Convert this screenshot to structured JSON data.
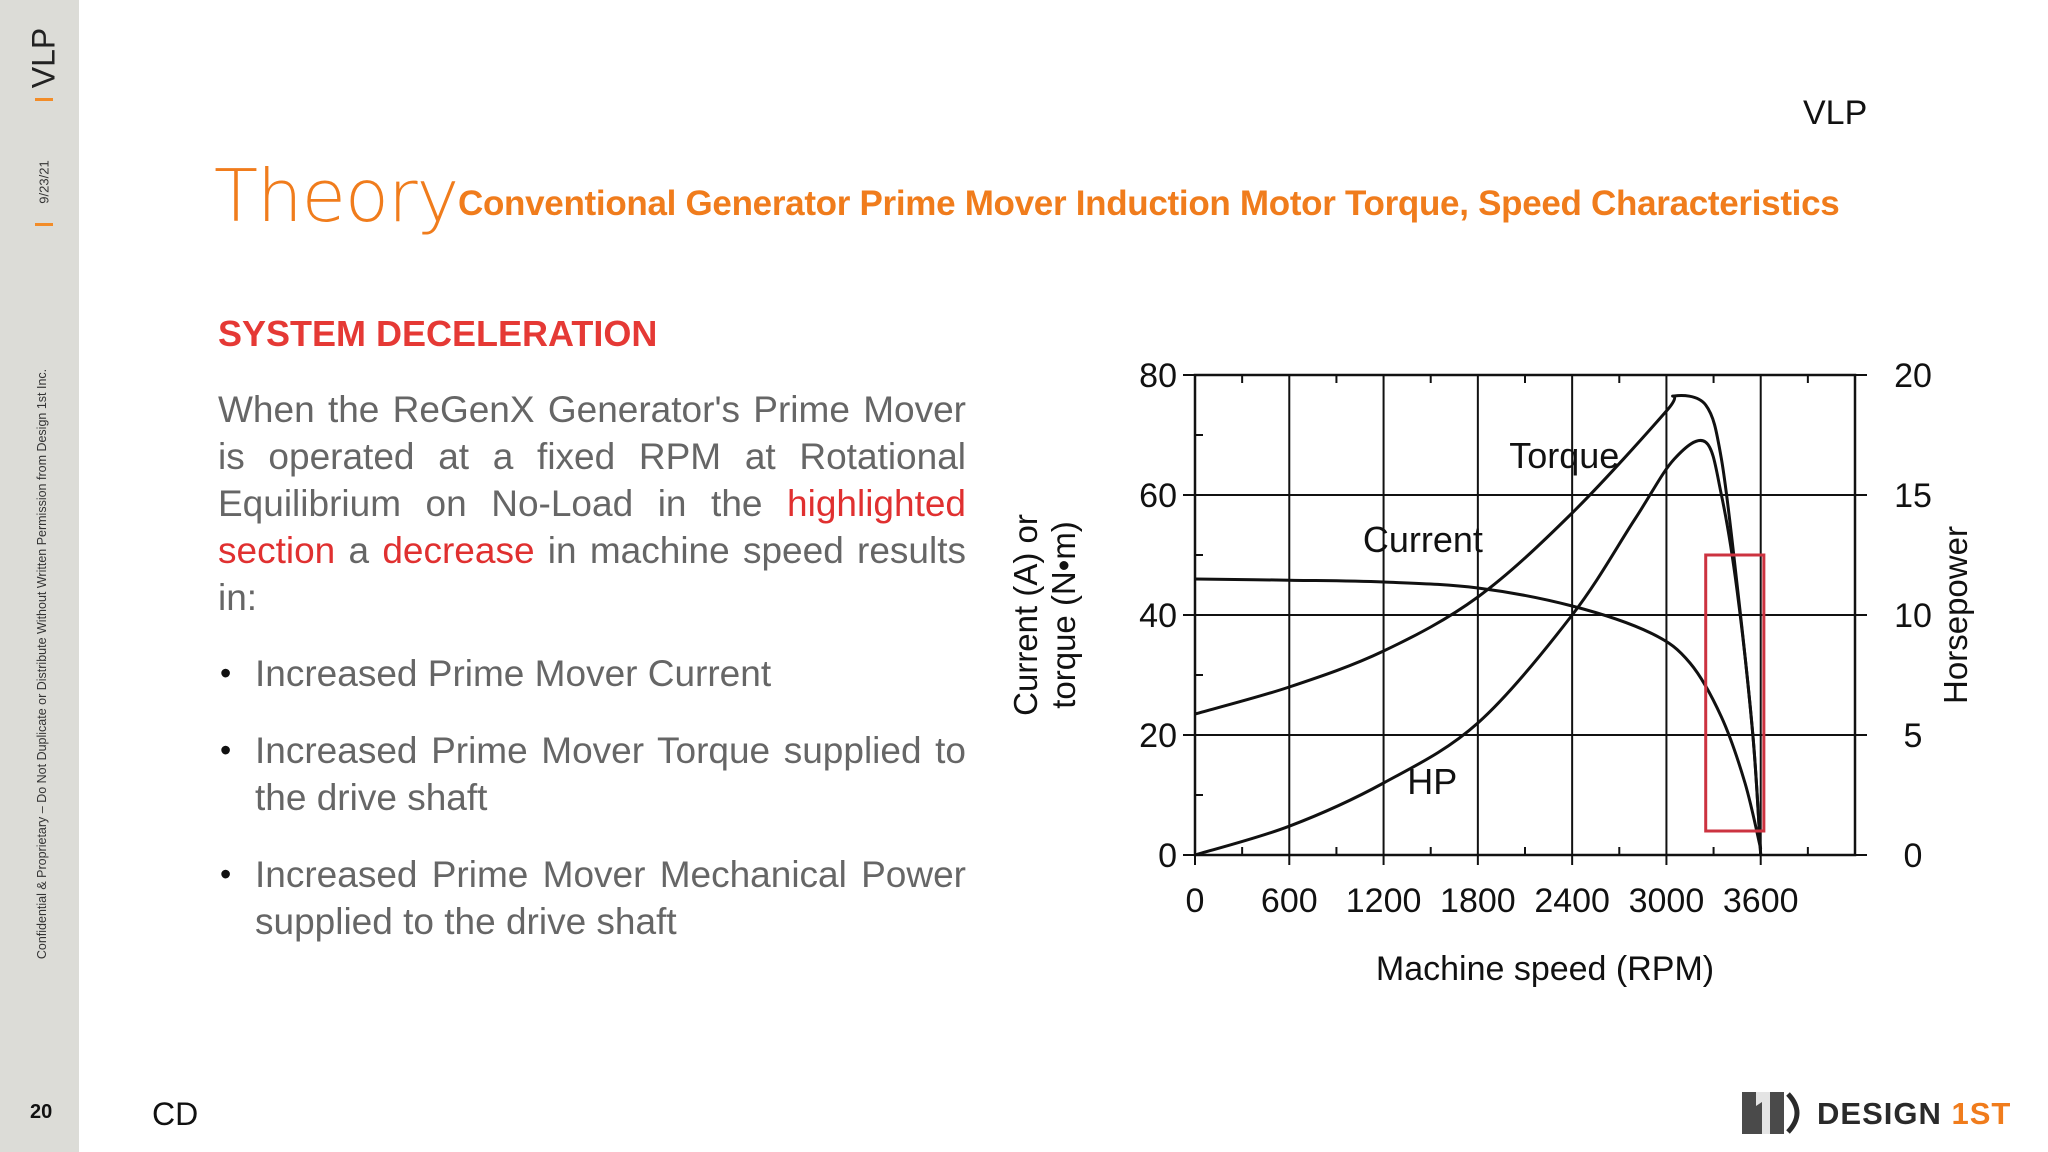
{
  "sidebar": {
    "brand": "VLP",
    "date": "9/23/21",
    "confidential": "Confidential & Proprietary – Do Not Duplicate or Distribute Without Written Permission from Design 1st Inc.",
    "page_number": "20"
  },
  "header": {
    "brand": "VLP",
    "title": "Theory",
    "subtitle": "Conventional Generator Prime Mover Induction Motor Torque, Speed Characteristics"
  },
  "body": {
    "section_heading": "SYSTEM DECELERATION",
    "paragraph_part1": "When the ReGenX Generator's Prime Mover is operated at a fixed RPM at Rotational Equilibrium on No-Load in the ",
    "paragraph_highlight1": "highlighted section",
    "paragraph_part2": " a ",
    "paragraph_highlight2": "decrease",
    "paragraph_part3": " in machine speed results in:",
    "bullets": [
      "Increased Prime Mover Current",
      "Increased Prime Mover Torque supplied to the drive shaft",
      "Increased Prime Mover Mechanical Power supplied to the drive shaft"
    ]
  },
  "footer": {
    "initials": "CD",
    "logo_word": "DESIGN",
    "logo_accent": "1ST"
  },
  "colors": {
    "accent_orange": "#f07c1c",
    "heading_red": "#e53935",
    "highlight_box": "#cc3340"
  },
  "chart_data": {
    "type": "line",
    "xlabel": "Machine speed (RPM)",
    "ylabel_left": "Current (A) or torque (N•m)",
    "ylabel_right": "Horsepower",
    "xlim": [
      0,
      4200
    ],
    "ylim_left": [
      0,
      80
    ],
    "ylim_right": [
      0,
      20
    ],
    "x_ticks": [
      "0",
      "600",
      "1200",
      "1800",
      "2400",
      "3000",
      "3600"
    ],
    "y_ticks_left": [
      "0",
      "20",
      "40",
      "60",
      "80"
    ],
    "y_ticks_right": [
      "0",
      "5",
      "10",
      "15",
      "20"
    ],
    "grid": true,
    "highlight_region": {
      "x": [
        3250,
        3620
      ],
      "y": [
        4,
        50
      ]
    },
    "series": [
      {
        "name": "Torque",
        "x": [
          0,
          600,
          1200,
          1800,
          2400,
          3000,
          3050,
          3250,
          3350,
          3450,
          3550,
          3600
        ],
        "values": [
          23.5,
          28,
          34,
          43,
          57,
          74,
          76.5,
          75,
          66,
          45,
          20,
          0
        ]
      },
      {
        "name": "Current",
        "x": [
          0,
          600,
          1200,
          1800,
          2400,
          2900,
          3150,
          3350,
          3500,
          3600
        ],
        "values": [
          46,
          45.8,
          45.5,
          44.5,
          41.5,
          37,
          32,
          23,
          12,
          1
        ]
      },
      {
        "name": "HP",
        "x": [
          0,
          600,
          1200,
          1800,
          2400,
          2800,
          3050,
          3250,
          3350,
          3450,
          3550,
          3600
        ],
        "values": [
          0,
          1.2,
          3,
          5.5,
          10,
          14,
          16.5,
          17.2,
          15,
          11,
          5,
          0
        ]
      }
    ]
  }
}
